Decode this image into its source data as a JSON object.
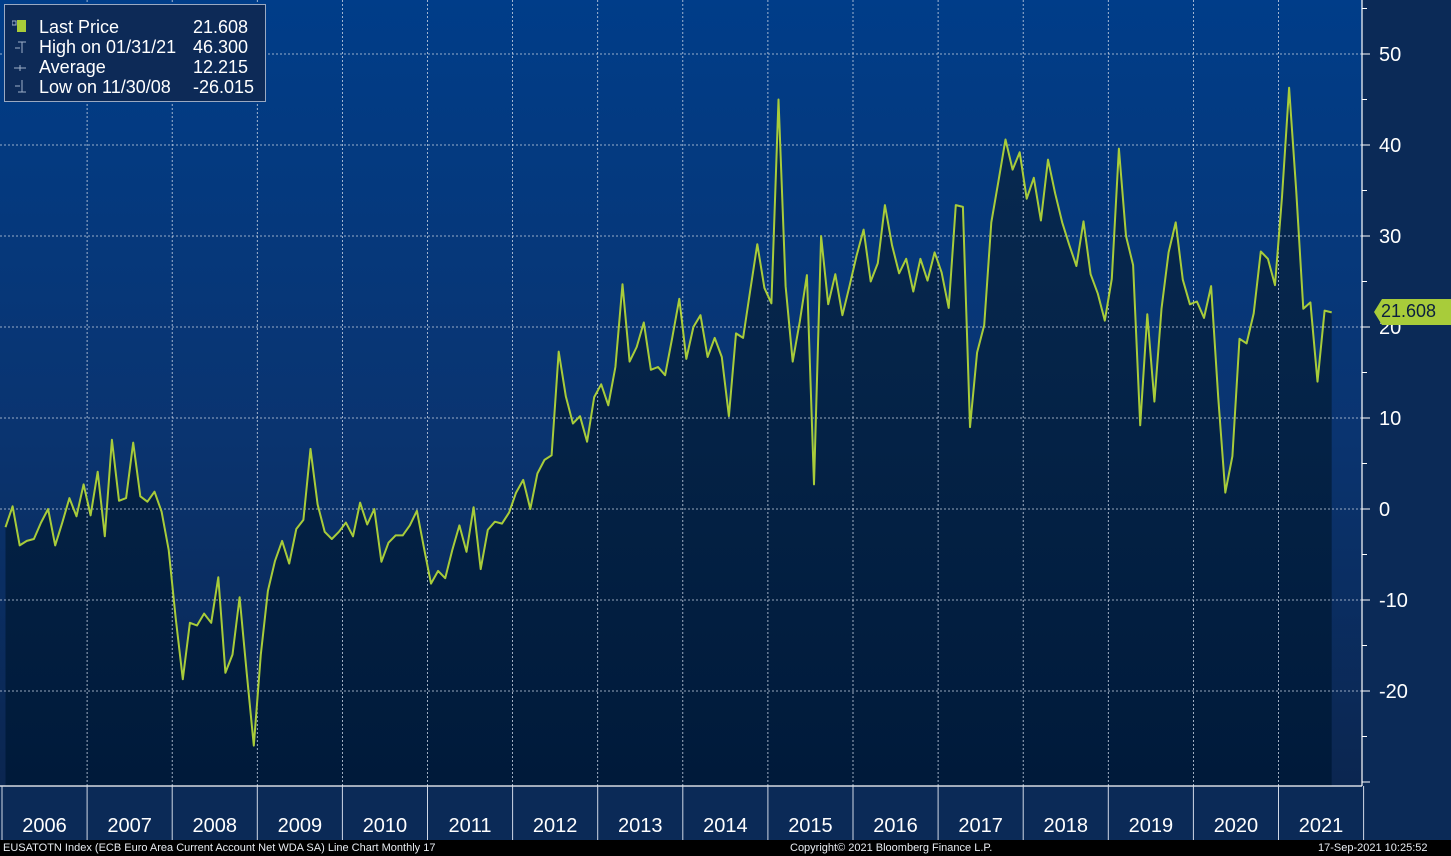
{
  "legend": {
    "rows": [
      {
        "label": "Last Price",
        "value": "21.608",
        "icon": "square-marker-icon"
      },
      {
        "label": "High on 01/31/21",
        "value": "46.300",
        "icon": "high-marker-icon"
      },
      {
        "label": "Average",
        "value": "12.215",
        "icon": "average-marker-icon"
      },
      {
        "label": "Low on 11/30/08",
        "value": "-26.015",
        "icon": "low-marker-icon"
      }
    ]
  },
  "last_value_tag": "21.608",
  "footer": {
    "left": "EUSATOTN Index (ECB Euro Area Current Account Net WDA SA) Line Chart  Monthly 17",
    "center": "Copyright© 2021 Bloomberg Finance L.P.",
    "right": "17-Sep-2021 10:25:52"
  },
  "colors": {
    "line": "#a8cc3a",
    "background_top": "#003f8a",
    "background_bottom": "#0b2a57",
    "area_fill": "#06203f"
  },
  "chart_data": {
    "type": "line",
    "title": "",
    "xlabel": "",
    "ylabel": "",
    "ylim": [
      -30,
      55
    ],
    "y_ticks": [
      50,
      40,
      30,
      20,
      10,
      0,
      -10,
      -20
    ],
    "y_tick_labels": [
      "50",
      "40",
      "30",
      "20",
      "10",
      "0",
      "-10",
      "-20"
    ],
    "x_tick_labels": [
      "2006",
      "2007",
      "2008",
      "2009",
      "2010",
      "2011",
      "2012",
      "2013",
      "2014",
      "2015",
      "2016",
      "2017",
      "2018",
      "2019",
      "2020",
      "2021"
    ],
    "grid": true,
    "legend": "top-left",
    "series": [
      {
        "name": "Last Price",
        "frequency": "monthly",
        "start": "2006-01",
        "values": [
          -2.0,
          0.3,
          -4.0,
          -3.5,
          -3.3,
          -1.5,
          0.0,
          -4.0,
          -1.5,
          1.2,
          -0.8,
          2.7,
          -0.7,
          4.1,
          -3.0,
          7.6,
          0.9,
          1.2,
          7.3,
          1.4,
          0.8,
          1.9,
          -0.3,
          -4.5,
          -12.0,
          -18.7,
          -12.5,
          -12.8,
          -11.5,
          -12.5,
          -7.5,
          -18.0,
          -16.0,
          -9.7,
          -18.0,
          -26.0,
          -16.0,
          -9.0,
          -5.7,
          -3.5,
          -6.0,
          -2.2,
          -1.2,
          6.6,
          0.5,
          -2.5,
          -3.3,
          -2.5,
          -1.5,
          -3.0,
          0.7,
          -1.7,
          0.0,
          -5.8,
          -3.7,
          -2.9,
          -2.9,
          -1.8,
          -0.2,
          -4.3,
          -8.2,
          -6.8,
          -7.6,
          -4.5,
          -1.8,
          -4.7,
          0.2,
          -6.6,
          -2.3,
          -1.4,
          -1.6,
          -0.4,
          1.8,
          3.2,
          0.0,
          3.9,
          5.4,
          5.9,
          17.3,
          12.4,
          9.4,
          10.2,
          7.4,
          12.3,
          13.7,
          11.4,
          15.6,
          24.7,
          16.2,
          17.8,
          20.5,
          15.3,
          15.6,
          14.7,
          18.8,
          23.1,
          16.5,
          20.0,
          21.3,
          16.7,
          18.8,
          16.7,
          10.2,
          19.3,
          18.8,
          24.0,
          29.1,
          24.3,
          22.6,
          45.0,
          24.5,
          16.2,
          20.6,
          25.7,
          2.7,
          30.0,
          22.5,
          25.8,
          21.3,
          24.5,
          27.8,
          30.7,
          25.0,
          27.0,
          33.4,
          29.0,
          25.9,
          27.5,
          23.9,
          27.5,
          25.1,
          28.2,
          26.0,
          22.1,
          33.4,
          33.2,
          9.0,
          17.2,
          20.2,
          31.5,
          36.0,
          40.6,
          37.3,
          39.2,
          34.1,
          36.4,
          31.7,
          38.4,
          34.7,
          31.5,
          29.0,
          26.7,
          31.6,
          25.8,
          23.7,
          20.7,
          25.3,
          39.6,
          30.0,
          26.8,
          9.2,
          21.4,
          11.8,
          22.0,
          28.2,
          31.5,
          25.2,
          22.5,
          22.8,
          21.0,
          24.5,
          12.3,
          1.8,
          5.8,
          18.7,
          18.2,
          21.5,
          28.3,
          27.5,
          24.6,
          34.3,
          46.3,
          35.0,
          22.0,
          22.7,
          14.0,
          21.8,
          21.6
        ]
      }
    ]
  }
}
